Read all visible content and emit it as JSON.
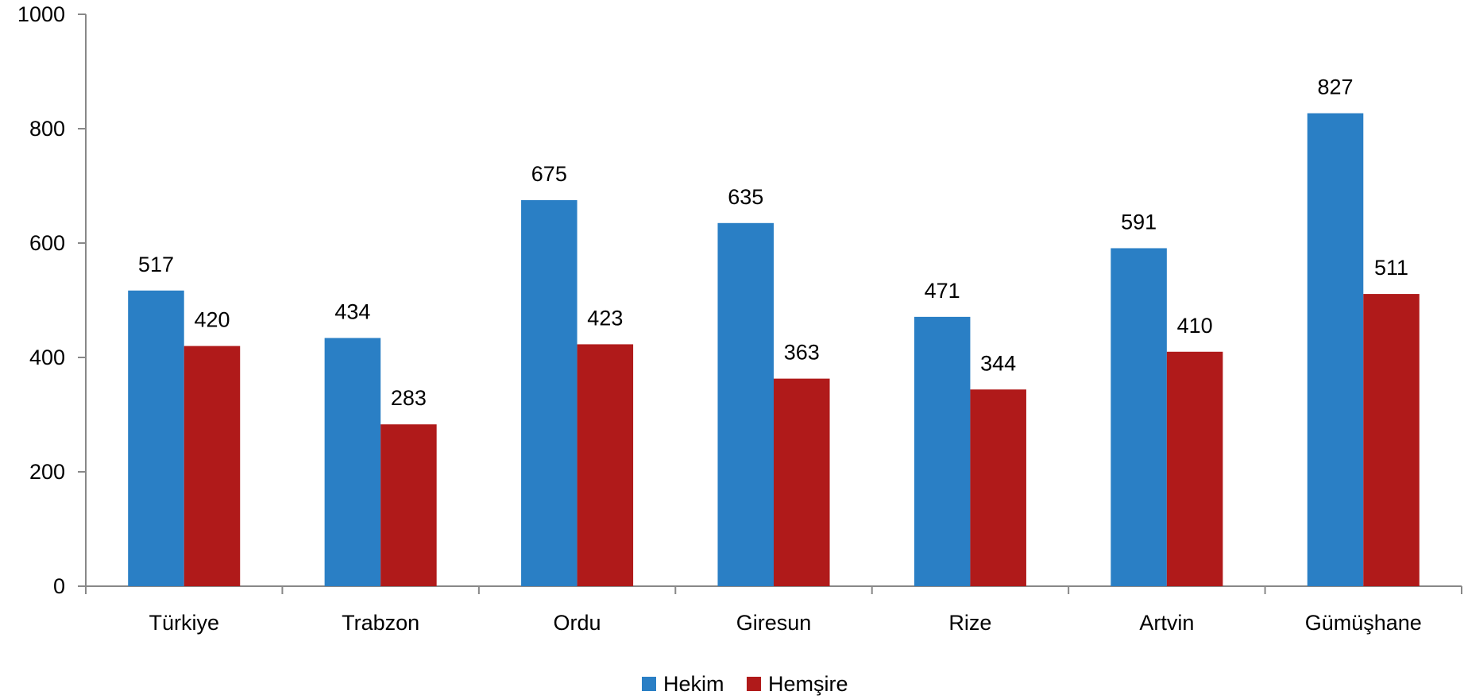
{
  "chart_data": {
    "type": "bar",
    "categories": [
      "Türkiye",
      "Trabzon",
      "Ordu",
      "Giresun",
      "Rize",
      "Artvin",
      "Gümüşhane"
    ],
    "series": [
      {
        "name": "Hekim",
        "color": "#2A7FC5",
        "values": [
          517,
          434,
          675,
          635,
          471,
          591,
          827
        ]
      },
      {
        "name": "Hemşire",
        "color": "#B01A1A",
        "values": [
          420,
          283,
          423,
          363,
          344,
          410,
          511
        ]
      }
    ],
    "yticks": [
      "0",
      "200",
      "400",
      "600",
      "800",
      "1000"
    ],
    "ylim": [
      0,
      1000
    ],
    "grid": false,
    "legend": "bottom-center"
  }
}
